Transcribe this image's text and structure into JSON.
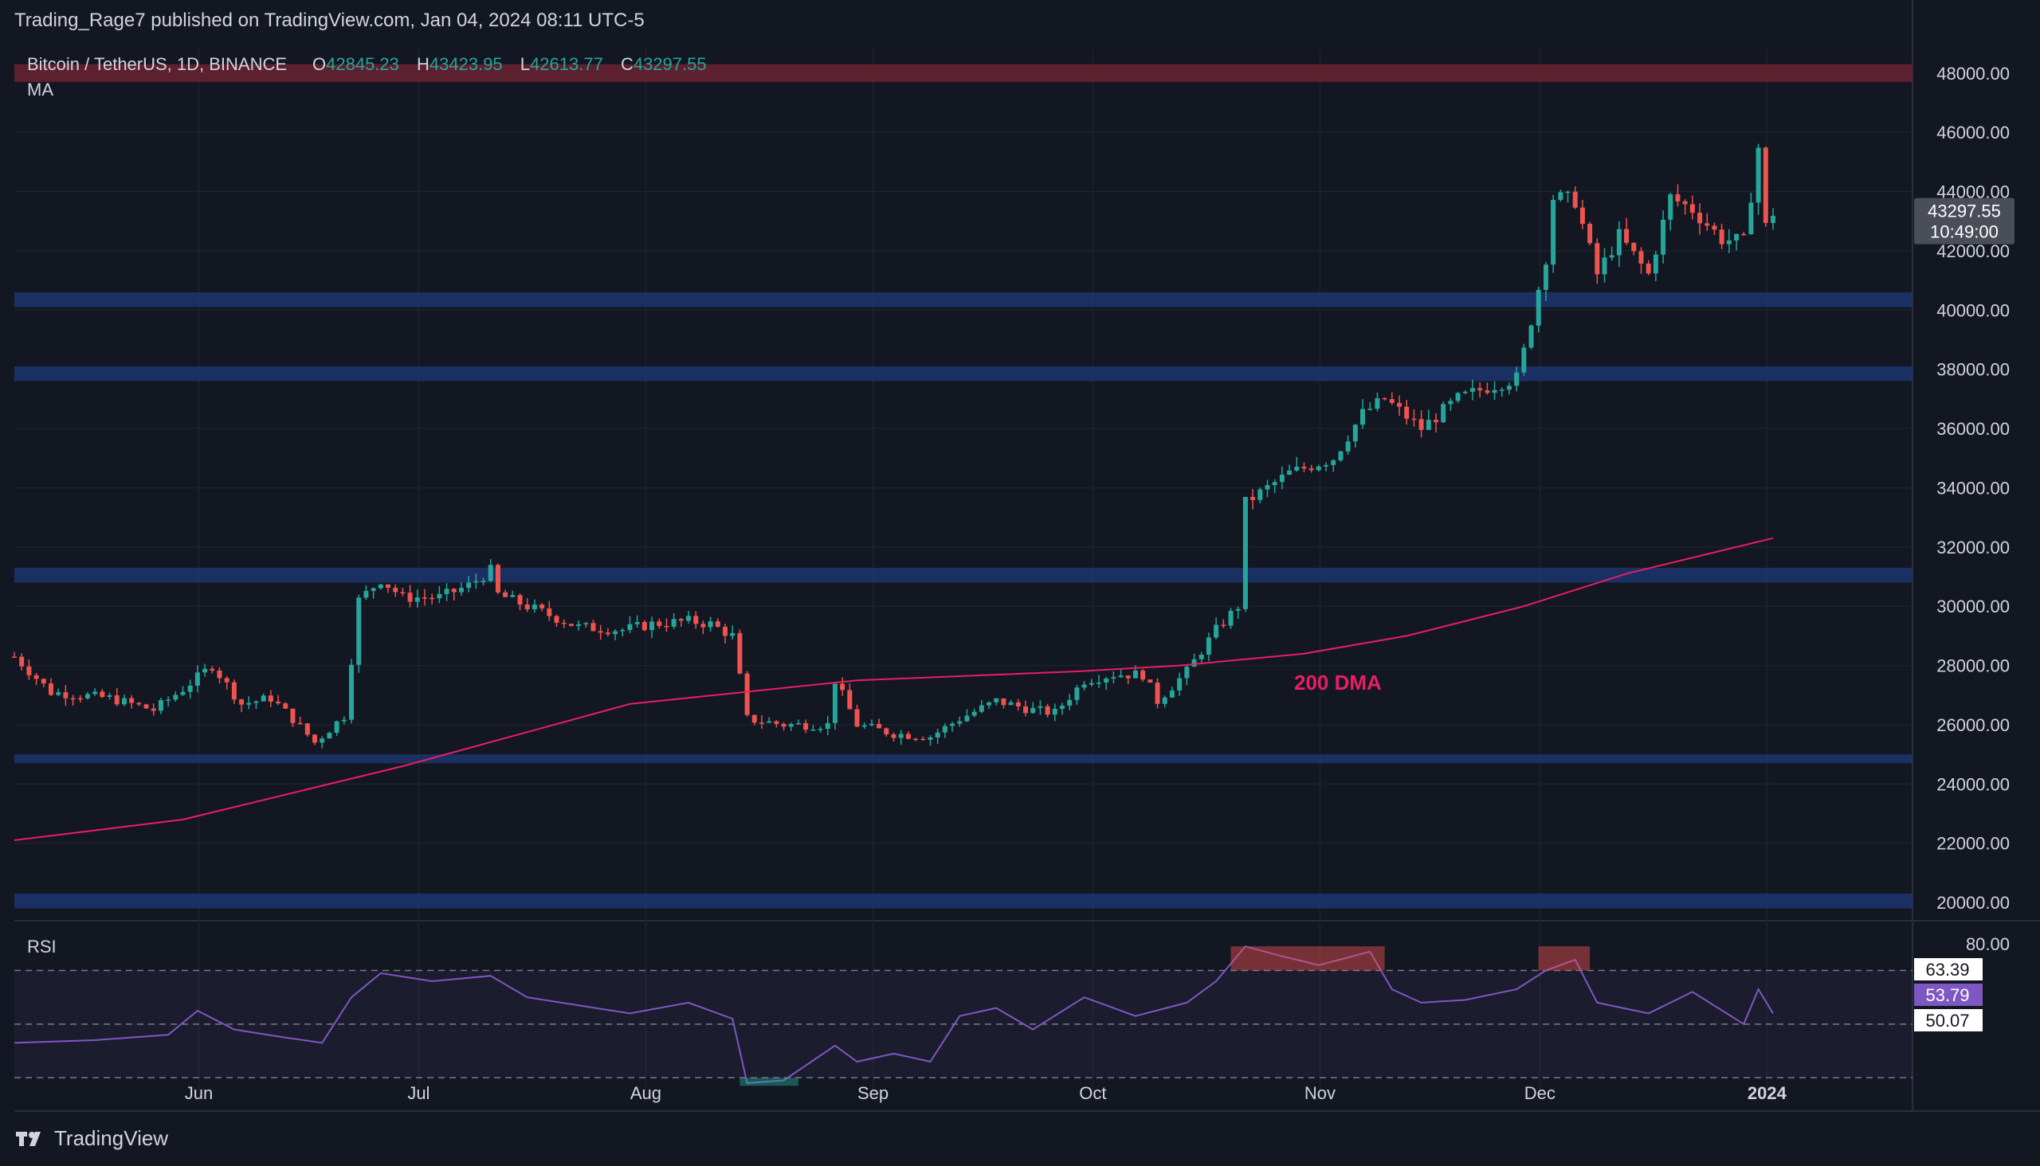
{
  "header": {
    "publisher": "Trading_Rage7 published on TradingView.com, Jan 04, 2024 08:11 UTC-5"
  },
  "footer": {
    "brand": "TradingView"
  },
  "colors": {
    "up": "#26a69a",
    "down": "#ef5350",
    "ma": "#e91e63",
    "rsi": "#7e57c2",
    "zone": "#1e3a78",
    "resistance": "#6b2230"
  },
  "chart_data": {
    "type": "candlestick",
    "symbol": "Bitcoin / TetherUS, 1D, BINANCE",
    "ohlc": {
      "o_label": "O",
      "o": "42845.23",
      "h_label": "H",
      "h": "43423.95",
      "l_label": "L",
      "l": "42613.77",
      "c_label": "C",
      "c": "43297.55"
    },
    "indicator_ma": "MA",
    "ma_label": "200 DMA",
    "price_axis": {
      "min": 19600,
      "max": 48800,
      "ticks": [
        "48000.00",
        "46000.00",
        "44000.00",
        "42000.00",
        "40000.00",
        "38000.00",
        "36000.00",
        "34000.00",
        "32000.00",
        "30000.00",
        "28000.00",
        "26000.00",
        "24000.00",
        "22000.00",
        "20000.00"
      ]
    },
    "last_price": {
      "value": "43297.55",
      "countdown": "10:49:00"
    },
    "x_axis": {
      "labels": [
        "Jun",
        "Jul",
        "Aug",
        "Sep",
        "Oct",
        "Nov",
        "Dec",
        "2024"
      ],
      "start": "2023-05-09",
      "end": "2024-01-04"
    },
    "zones": [
      {
        "type": "resistance",
        "low": 47700,
        "high": 48300
      },
      {
        "type": "support",
        "low": 40100,
        "high": 40600
      },
      {
        "type": "support",
        "low": 37600,
        "high": 38100
      },
      {
        "type": "support",
        "low": 30800,
        "high": 31300
      },
      {
        "type": "support",
        "low": 24700,
        "high": 25000
      },
      {
        "type": "support",
        "low": 19800,
        "high": 20300
      }
    ],
    "price_path": [
      [
        "2023-05-09",
        28300
      ],
      [
        "2023-05-14",
        27100
      ],
      [
        "2023-05-22",
        26900
      ],
      [
        "2023-05-28",
        26500
      ],
      [
        "2023-06-01",
        27200
      ],
      [
        "2023-06-05",
        28000
      ],
      [
        "2023-06-09",
        26700
      ],
      [
        "2023-06-13",
        26900
      ],
      [
        "2023-06-16",
        26200
      ],
      [
        "2023-06-19",
        25400
      ],
      [
        "2023-06-23",
        26300
      ],
      [
        "2023-06-24",
        28200
      ],
      [
        "2023-06-25",
        30200
      ],
      [
        "2023-06-28",
        30900
      ],
      [
        "2023-07-01",
        30300
      ],
      [
        "2023-07-06",
        30300
      ],
      [
        "2023-07-10",
        30700
      ],
      [
        "2023-07-13",
        31200
      ],
      [
        "2023-07-14",
        30400
      ],
      [
        "2023-07-20",
        29800
      ],
      [
        "2023-07-25",
        29300
      ],
      [
        "2023-07-31",
        29200
      ],
      [
        "2023-08-04",
        29400
      ],
      [
        "2023-08-09",
        29500
      ],
      [
        "2023-08-12",
        29400
      ],
      [
        "2023-08-15",
        29000
      ],
      [
        "2023-08-17",
        26200
      ],
      [
        "2023-08-22",
        26000
      ],
      [
        "2023-08-28",
        26000
      ],
      [
        "2023-08-29",
        27500
      ],
      [
        "2023-09-01",
        26000
      ],
      [
        "2023-09-06",
        25700
      ],
      [
        "2023-09-11",
        25600
      ],
      [
        "2023-09-15",
        26200
      ],
      [
        "2023-09-20",
        26800
      ],
      [
        "2023-09-25",
        26500
      ],
      [
        "2023-09-28",
        26400
      ],
      [
        "2023-10-02",
        27500
      ],
      [
        "2023-10-06",
        27700
      ],
      [
        "2023-10-10",
        27700
      ],
      [
        "2023-10-12",
        26800
      ],
      [
        "2023-10-16",
        27800
      ],
      [
        "2023-10-20",
        29200
      ],
      [
        "2023-10-23",
        30000
      ],
      [
        "2023-10-24",
        33500
      ],
      [
        "2023-10-30",
        34500
      ],
      [
        "2023-11-05",
        35000
      ],
      [
        "2023-11-09",
        36500
      ],
      [
        "2023-11-12",
        37000
      ],
      [
        "2023-11-17",
        36000
      ],
      [
        "2023-11-22",
        37000
      ],
      [
        "2023-11-26",
        37400
      ],
      [
        "2023-11-30",
        37700
      ],
      [
        "2023-12-01",
        38600
      ],
      [
        "2023-12-04",
        41800
      ],
      [
        "2023-12-05",
        43800
      ],
      [
        "2023-12-08",
        43700
      ],
      [
        "2023-12-11",
        41200
      ],
      [
        "2023-12-14",
        42500
      ],
      [
        "2023-12-18",
        41200
      ],
      [
        "2023-12-21",
        43800
      ],
      [
        "2023-12-24",
        43400
      ],
      [
        "2023-12-28",
        42400
      ],
      [
        "2023-12-31",
        42300
      ],
      [
        "2024-01-02",
        45500
      ],
      [
        "2024-01-03",
        42800
      ],
      [
        "2024-01-04",
        43300
      ]
    ],
    "ma_200": [
      [
        "2023-05-09",
        22100
      ],
      [
        "2023-06-01",
        22800
      ],
      [
        "2023-07-01",
        24600
      ],
      [
        "2023-08-01",
        26700
      ],
      [
        "2023-09-01",
        27500
      ],
      [
        "2023-10-01",
        27800
      ],
      [
        "2023-10-15",
        28000
      ],
      [
        "2023-11-01",
        28400
      ],
      [
        "2023-11-15",
        29000
      ],
      [
        "2023-12-01",
        30000
      ],
      [
        "2023-12-15",
        31100
      ],
      [
        "2024-01-04",
        32300
      ]
    ],
    "rsi": {
      "label": "RSI",
      "min": 25,
      "max": 85,
      "top_label": "80.00",
      "values": {
        "rsi": "53.79",
        "upper": "63.39",
        "lower": "50.07"
      },
      "bands": [
        70,
        50,
        30
      ],
      "series": [
        [
          "2023-05-09",
          43
        ],
        [
          "2023-05-20",
          44
        ],
        [
          "2023-05-30",
          46
        ],
        [
          "2023-06-03",
          55
        ],
        [
          "2023-06-08",
          48
        ],
        [
          "2023-06-15",
          45
        ],
        [
          "2023-06-20",
          43
        ],
        [
          "2023-06-24",
          60
        ],
        [
          "2023-06-28",
          69
        ],
        [
          "2023-07-05",
          66
        ],
        [
          "2023-07-13",
          68
        ],
        [
          "2023-07-18",
          60
        ],
        [
          "2023-07-25",
          57
        ],
        [
          "2023-08-01",
          54
        ],
        [
          "2023-08-09",
          58
        ],
        [
          "2023-08-15",
          52
        ],
        [
          "2023-08-17",
          28
        ],
        [
          "2023-08-22",
          29
        ],
        [
          "2023-08-29",
          42
        ],
        [
          "2023-09-01",
          36
        ],
        [
          "2023-09-06",
          39
        ],
        [
          "2023-09-11",
          36
        ],
        [
          "2023-09-15",
          53
        ],
        [
          "2023-09-20",
          56
        ],
        [
          "2023-09-25",
          48
        ],
        [
          "2023-10-02",
          60
        ],
        [
          "2023-10-09",
          53
        ],
        [
          "2023-10-16",
          58
        ],
        [
          "2023-10-20",
          66
        ],
        [
          "2023-10-24",
          79
        ],
        [
          "2023-10-28",
          76
        ],
        [
          "2023-11-03",
          72
        ],
        [
          "2023-11-10",
          77
        ],
        [
          "2023-11-13",
          63
        ],
        [
          "2023-11-17",
          58
        ],
        [
          "2023-11-23",
          59
        ],
        [
          "2023-11-30",
          63
        ],
        [
          "2023-12-04",
          70
        ],
        [
          "2023-12-08",
          74
        ],
        [
          "2023-12-11",
          58
        ],
        [
          "2023-12-18",
          54
        ],
        [
          "2023-12-24",
          62
        ],
        [
          "2023-12-31",
          50
        ],
        [
          "2024-01-02",
          63
        ],
        [
          "2024-01-04",
          54
        ]
      ]
    }
  }
}
